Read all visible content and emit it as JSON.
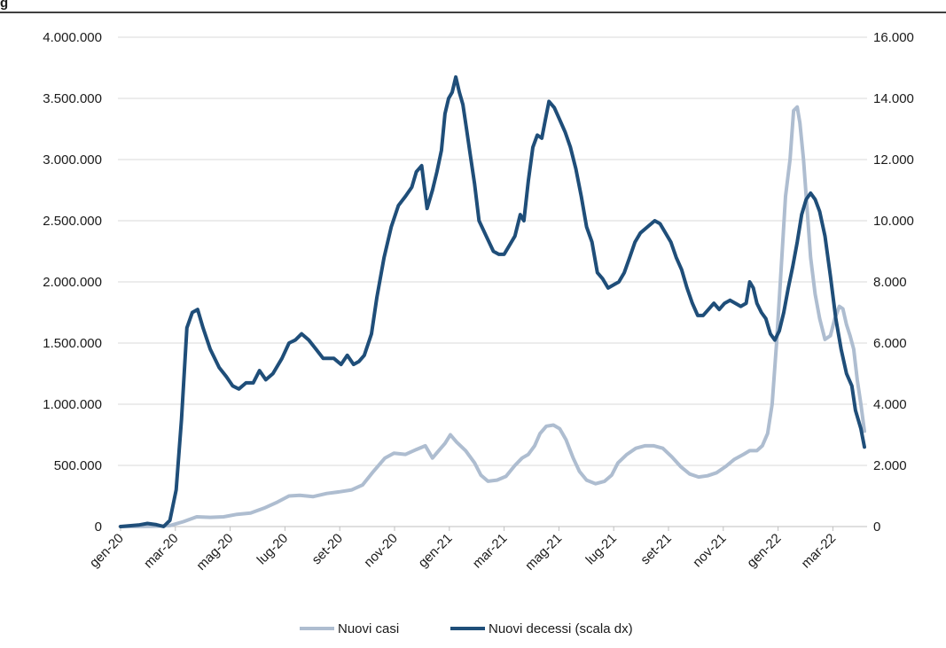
{
  "header_title": "g",
  "chart_data": {
    "type": "line",
    "title": "",
    "xlabel": "",
    "ylabel": "",
    "y_left_ticks": [
      "0",
      "500.000",
      "1.000.000",
      "1.500.000",
      "2.000.000",
      "2.500.000",
      "3.000.000",
      "3.500.000",
      "4.000.000"
    ],
    "y_right_ticks": [
      "0",
      "2.000",
      "4.000",
      "6.000",
      "8.000",
      "10.000",
      "12.000",
      "14.000",
      "16.000"
    ],
    "ylim_left": [
      0,
      4000000
    ],
    "ylim_right": [
      0,
      16000
    ],
    "x_tick_labels": [
      "gen-20",
      "mar-20",
      "mag-20",
      "lug-20",
      "set-20",
      "nov-20",
      "gen-21",
      "mar-21",
      "mag-21",
      "lug-21",
      "set-21",
      "nov-21",
      "gen-22",
      "mar-22"
    ],
    "x_range_days": [
      0,
      830
    ],
    "grid": true,
    "legend_position": "bottom",
    "series": [
      {
        "name": "Nuovi casi",
        "axis": "left",
        "color": "#aebdd0",
        "points": [
          [
            0,
            0
          ],
          [
            20,
            1000
          ],
          [
            40,
            3000
          ],
          [
            55,
            8000
          ],
          [
            70,
            40000
          ],
          [
            85,
            80000
          ],
          [
            100,
            75000
          ],
          [
            115,
            80000
          ],
          [
            130,
            100000
          ],
          [
            145,
            110000
          ],
          [
            160,
            150000
          ],
          [
            175,
            200000
          ],
          [
            188,
            250000
          ],
          [
            200,
            255000
          ],
          [
            215,
            245000
          ],
          [
            230,
            270000
          ],
          [
            245,
            285000
          ],
          [
            258,
            300000
          ],
          [
            270,
            340000
          ],
          [
            282,
            450000
          ],
          [
            295,
            560000
          ],
          [
            305,
            600000
          ],
          [
            318,
            590000
          ],
          [
            330,
            630000
          ],
          [
            340,
            660000
          ],
          [
            348,
            560000
          ],
          [
            355,
            620000
          ],
          [
            362,
            680000
          ],
          [
            368,
            750000
          ],
          [
            375,
            690000
          ],
          [
            385,
            620000
          ],
          [
            395,
            520000
          ],
          [
            402,
            420000
          ],
          [
            410,
            370000
          ],
          [
            420,
            380000
          ],
          [
            430,
            410000
          ],
          [
            440,
            500000
          ],
          [
            448,
            560000
          ],
          [
            455,
            590000
          ],
          [
            462,
            660000
          ],
          [
            468,
            760000
          ],
          [
            475,
            820000
          ],
          [
            483,
            830000
          ],
          [
            490,
            800000
          ],
          [
            497,
            710000
          ],
          [
            505,
            560000
          ],
          [
            512,
            450000
          ],
          [
            520,
            380000
          ],
          [
            530,
            350000
          ],
          [
            540,
            370000
          ],
          [
            548,
            420000
          ],
          [
            555,
            520000
          ],
          [
            565,
            590000
          ],
          [
            575,
            640000
          ],
          [
            585,
            660000
          ],
          [
            595,
            660000
          ],
          [
            605,
            640000
          ],
          [
            615,
            570000
          ],
          [
            625,
            490000
          ],
          [
            635,
            430000
          ],
          [
            645,
            405000
          ],
          [
            655,
            415000
          ],
          [
            665,
            440000
          ],
          [
            675,
            490000
          ],
          [
            685,
            550000
          ],
          [
            695,
            590000
          ],
          [
            702,
            620000
          ],
          [
            710,
            620000
          ],
          [
            716,
            660000
          ],
          [
            722,
            760000
          ],
          [
            727,
            1000000
          ],
          [
            732,
            1500000
          ],
          [
            737,
            2100000
          ],
          [
            742,
            2700000
          ],
          [
            747,
            3000000
          ],
          [
            751,
            3400000
          ],
          [
            755,
            3430000
          ],
          [
            758,
            3300000
          ],
          [
            762,
            3000000
          ],
          [
            766,
            2600000
          ],
          [
            770,
            2200000
          ],
          [
            775,
            1900000
          ],
          [
            780,
            1700000
          ],
          [
            786,
            1530000
          ],
          [
            792,
            1560000
          ],
          [
            797,
            1700000
          ],
          [
            802,
            1800000
          ],
          [
            806,
            1780000
          ],
          [
            810,
            1650000
          ],
          [
            814,
            1560000
          ],
          [
            818,
            1450000
          ],
          [
            822,
            1200000
          ],
          [
            826,
            1000000
          ],
          [
            830,
            780000
          ]
        ]
      },
      {
        "name": "Nuovi decessi (scala dx)",
        "axis": "right",
        "color": "#1f4e79",
        "points": [
          [
            0,
            0
          ],
          [
            20,
            50
          ],
          [
            30,
            100
          ],
          [
            40,
            60
          ],
          [
            48,
            0
          ],
          [
            55,
            200
          ],
          [
            62,
            1200
          ],
          [
            68,
            3500
          ],
          [
            74,
            6500
          ],
          [
            80,
            7000
          ],
          [
            86,
            7100
          ],
          [
            92,
            6500
          ],
          [
            100,
            5800
          ],
          [
            110,
            5200
          ],
          [
            118,
            4900
          ],
          [
            125,
            4600
          ],
          [
            132,
            4500
          ],
          [
            140,
            4700
          ],
          [
            148,
            4700
          ],
          [
            155,
            5100
          ],
          [
            162,
            4800
          ],
          [
            170,
            5000
          ],
          [
            180,
            5500
          ],
          [
            188,
            6000
          ],
          [
            195,
            6100
          ],
          [
            202,
            6300
          ],
          [
            210,
            6100
          ],
          [
            218,
            5800
          ],
          [
            226,
            5500
          ],
          [
            232,
            5500
          ],
          [
            238,
            5500
          ],
          [
            246,
            5300
          ],
          [
            253,
            5600
          ],
          [
            260,
            5300
          ],
          [
            266,
            5400
          ],
          [
            272,
            5600
          ],
          [
            280,
            6300
          ],
          [
            286,
            7500
          ],
          [
            294,
            8800
          ],
          [
            302,
            9800
          ],
          [
            310,
            10500
          ],
          [
            318,
            10800
          ],
          [
            325,
            11100
          ],
          [
            330,
            11600
          ],
          [
            336,
            11800
          ],
          [
            342,
            10400
          ],
          [
            348,
            11000
          ],
          [
            353,
            11600
          ],
          [
            358,
            12300
          ],
          [
            362,
            13500
          ],
          [
            366,
            14000
          ],
          [
            370,
            14200
          ],
          [
            374,
            14700
          ],
          [
            378,
            14200
          ],
          [
            382,
            13800
          ],
          [
            386,
            13000
          ],
          [
            390,
            12200
          ],
          [
            395,
            11200
          ],
          [
            400,
            10000
          ],
          [
            408,
            9500
          ],
          [
            416,
            9000
          ],
          [
            422,
            8900
          ],
          [
            428,
            8900
          ],
          [
            434,
            9200
          ],
          [
            440,
            9500
          ],
          [
            446,
            10200
          ],
          [
            450,
            10000
          ],
          [
            455,
            11300
          ],
          [
            460,
            12400
          ],
          [
            465,
            12800
          ],
          [
            470,
            12700
          ],
          [
            474,
            13300
          ],
          [
            478,
            13900
          ],
          [
            484,
            13700
          ],
          [
            490,
            13300
          ],
          [
            496,
            12900
          ],
          [
            502,
            12400
          ],
          [
            508,
            11700
          ],
          [
            514,
            10800
          ],
          [
            520,
            9800
          ],
          [
            526,
            9300
          ],
          [
            532,
            8300
          ],
          [
            538,
            8100
          ],
          [
            544,
            7800
          ],
          [
            550,
            7900
          ],
          [
            556,
            8000
          ],
          [
            562,
            8300
          ],
          [
            568,
            8800
          ],
          [
            574,
            9300
          ],
          [
            580,
            9600
          ],
          [
            588,
            9800
          ],
          [
            596,
            10000
          ],
          [
            602,
            9900
          ],
          [
            608,
            9600
          ],
          [
            614,
            9300
          ],
          [
            620,
            8800
          ],
          [
            626,
            8400
          ],
          [
            632,
            7800
          ],
          [
            638,
            7300
          ],
          [
            644,
            6900
          ],
          [
            650,
            6900
          ],
          [
            656,
            7100
          ],
          [
            662,
            7300
          ],
          [
            668,
            7100
          ],
          [
            674,
            7300
          ],
          [
            680,
            7400
          ],
          [
            686,
            7300
          ],
          [
            692,
            7200
          ],
          [
            698,
            7300
          ],
          [
            702,
            8000
          ],
          [
            706,
            7800
          ],
          [
            710,
            7300
          ],
          [
            715,
            7000
          ],
          [
            720,
            6800
          ],
          [
            725,
            6300
          ],
          [
            730,
            6100
          ],
          [
            735,
            6400
          ],
          [
            740,
            7000
          ],
          [
            745,
            7800
          ],
          [
            750,
            8500
          ],
          [
            755,
            9300
          ],
          [
            760,
            10200
          ],
          [
            765,
            10700
          ],
          [
            770,
            10900
          ],
          [
            775,
            10700
          ],
          [
            780,
            10300
          ],
          [
            786,
            9500
          ],
          [
            792,
            8200
          ],
          [
            798,
            6800
          ],
          [
            804,
            5800
          ],
          [
            810,
            5000
          ],
          [
            816,
            4600
          ],
          [
            820,
            3800
          ],
          [
            826,
            3200
          ],
          [
            830,
            2600
          ]
        ]
      }
    ]
  }
}
